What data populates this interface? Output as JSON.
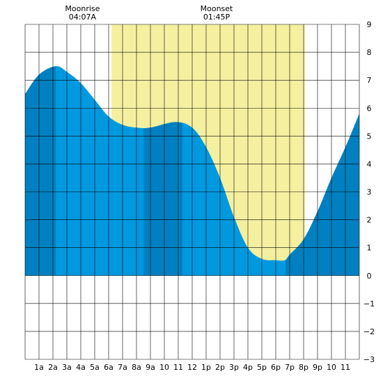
{
  "chart_data": {
    "type": "area",
    "title": "",
    "xlabel": "",
    "ylabel": "",
    "x_tick_labels": [
      "1a",
      "2a",
      "3a",
      "4a",
      "5a",
      "6a",
      "7a",
      "8a",
      "9a",
      "10",
      "11",
      "12",
      "1p",
      "2p",
      "3p",
      "4p",
      "5p",
      "6p",
      "7p",
      "8p",
      "9p",
      "10",
      "11"
    ],
    "x_range_hours": [
      0,
      24
    ],
    "ylim": [
      -3,
      9
    ],
    "y_ticks": [
      -3,
      -2,
      -1,
      0,
      1,
      2,
      3,
      4,
      5,
      6,
      7,
      8,
      9
    ],
    "grid": true,
    "series": [
      {
        "x_hours": [
          0,
          1,
          2.2,
          3,
          4,
          5,
          6,
          7,
          8,
          9,
          10.8,
          12,
          13,
          14,
          15,
          16,
          17,
          18,
          18.65,
          19,
          20,
          21,
          22,
          23,
          24
        ],
        "values": [
          6.5,
          7.2,
          7.5,
          7.3,
          6.9,
          6.3,
          5.7,
          5.4,
          5.3,
          5.3,
          5.5,
          5.3,
          4.6,
          3.5,
          2.1,
          1.0,
          0.6,
          0.55,
          0.55,
          0.75,
          1.3,
          2.3,
          3.5,
          4.6,
          5.8
        ]
      }
    ],
    "daylight_hours": [
      6.2,
      20.1
    ],
    "dark_bands_hours": [
      [
        0,
        2.2
      ],
      [
        8.5,
        11.3
      ],
      [
        18.7,
        24
      ]
    ],
    "annotations": [
      {
        "label": "Moonrise",
        "time": "04:07A",
        "hour": 4.12
      },
      {
        "label": "Moonset",
        "time": "01:45P",
        "hour": 13.75
      }
    ],
    "colors": {
      "tide_fill": "#0099e0",
      "tide_dark": "#0080c0",
      "daylight": "#f5f0a0",
      "grid": "#000000"
    }
  }
}
